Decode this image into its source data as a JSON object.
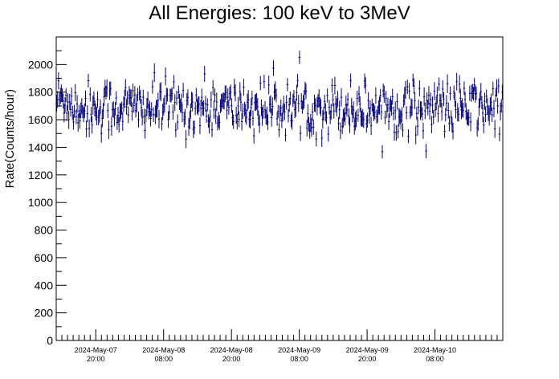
{
  "chart_data": {
    "type": "scatter",
    "title": "All Energies:  100 keV to 3MeV",
    "xlabel": "",
    "ylabel": "Rate(Counts/hour)",
    "ylim": [
      0,
      2200
    ],
    "yticks": [
      0,
      200,
      400,
      600,
      800,
      1000,
      1200,
      1400,
      1600,
      1800,
      2000
    ],
    "xlim_hours": [
      0,
      79
    ],
    "xticks": [
      {
        "hour": 7.0,
        "date": "2024-May-07",
        "time": "20:00"
      },
      {
        "hour": 19.0,
        "date": "2024-May-08",
        "time": "08:00"
      },
      {
        "hour": 31.0,
        "date": "2024-May-08",
        "time": "20:00"
      },
      {
        "hour": 43.0,
        "date": "2024-May-09",
        "time": "08:00"
      },
      {
        "hour": 55.0,
        "date": "2024-May-09",
        "time": "20:00"
      },
      {
        "hour": 67.0,
        "date": "2024-May-10",
        "time": "08:00"
      }
    ],
    "series": [
      {
        "color": "#000080",
        "mean": 1690,
        "spread": 95,
        "error": 55,
        "n_points": 480
      }
    ],
    "grid": false,
    "legend": "none"
  }
}
